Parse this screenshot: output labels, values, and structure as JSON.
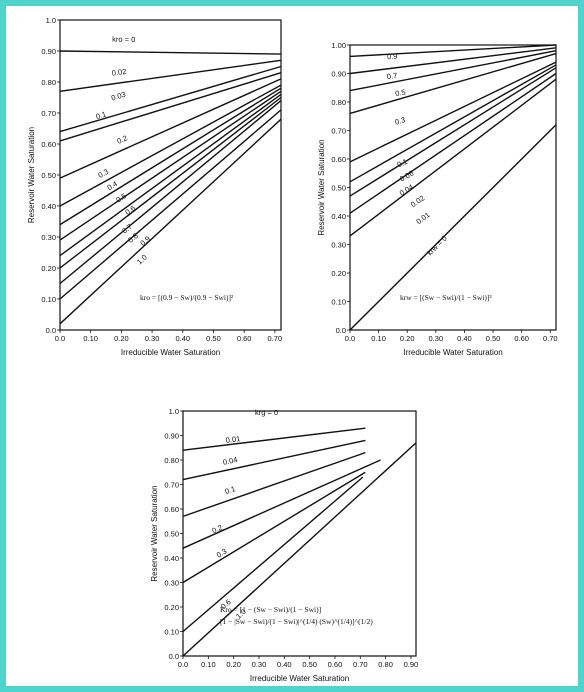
{
  "colors": {
    "frame": "#4fd3cd",
    "ink": "#111111",
    "background": "#ffffff"
  },
  "chart_data": [
    {
      "type": "line",
      "xlabel": "Irreducible Water Saturation",
      "ylabel": "Reservoir Water Saturation",
      "xlim": [
        0,
        0.72
      ],
      "ylim": [
        0,
        1.0
      ],
      "xticks": [
        "0.0",
        "0.10",
        "0.20",
        "0.30",
        "0.40",
        "0.50",
        "0.60",
        "0.70"
      ],
      "yticks": [
        "0.0",
        "0.10",
        "0.20",
        "0.30",
        "0.40",
        "0.50",
        "0.60",
        "0.70",
        "0.80",
        "0.90",
        "1.0"
      ],
      "formula": "kro = [(0.9 − Sw)/(0.9 − Swi)]²",
      "series": [
        {
          "name": "kro = 0",
          "points": [
            [
              0,
              0.9
            ],
            [
              0.72,
              0.89
            ]
          ],
          "label_at": [
            0.17,
            0.93
          ]
        },
        {
          "name": "0.02",
          "points": [
            [
              0,
              0.77
            ],
            [
              0.72,
              0.87
            ]
          ],
          "label_at": [
            0.17,
            0.82
          ]
        },
        {
          "name": "0.03",
          "points": [
            [
              0,
              0.64
            ],
            [
              0.72,
              0.85
            ]
          ],
          "label_at": [
            0.17,
            0.74
          ]
        },
        {
          "name": "0.1",
          "points": [
            [
              0,
              0.61
            ],
            [
              0.72,
              0.83
            ]
          ],
          "label_at": [
            0.12,
            0.68
          ]
        },
        {
          "name": "0.2",
          "points": [
            [
              0,
              0.49
            ],
            [
              0.72,
              0.81
            ]
          ],
          "label_at": [
            0.19,
            0.6
          ]
        },
        {
          "name": "0.3",
          "points": [
            [
              0,
              0.4
            ],
            [
              0.72,
              0.79
            ]
          ],
          "label_at": [
            0.13,
            0.49
          ]
        },
        {
          "name": "0.4",
          "points": [
            [
              0,
              0.34
            ],
            [
              0.72,
              0.78
            ]
          ],
          "label_at": [
            0.16,
            0.45
          ]
        },
        {
          "name": "0.5",
          "points": [
            [
              0,
              0.29
            ],
            [
              0.72,
              0.77
            ]
          ],
          "label_at": [
            0.19,
            0.41
          ]
        },
        {
          "name": "0.6",
          "points": [
            [
              0,
              0.24
            ],
            [
              0.72,
              0.76
            ]
          ],
          "label_at": [
            0.22,
            0.37
          ]
        },
        {
          "name": "0.7",
          "points": [
            [
              0,
              0.2
            ],
            [
              0.72,
              0.75
            ]
          ],
          "label_at": [
            0.21,
            0.31
          ]
        },
        {
          "name": "0.8",
          "points": [
            [
              0,
              0.15
            ],
            [
              0.72,
              0.74
            ]
          ],
          "label_at": [
            0.23,
            0.28
          ]
        },
        {
          "name": "0.9",
          "points": [
            [
              0,
              0.1
            ],
            [
              0.72,
              0.71
            ]
          ],
          "label_at": [
            0.27,
            0.27
          ]
        },
        {
          "name": "1.0",
          "points": [
            [
              0,
              0.02
            ],
            [
              0.72,
              0.68
            ]
          ],
          "label_at": [
            0.26,
            0.21
          ]
        }
      ]
    },
    {
      "type": "line",
      "xlabel": "Irreducible Water Saturation",
      "ylabel": "Reservoir Water Saturation",
      "xlim": [
        0,
        0.72
      ],
      "ylim": [
        0,
        1.0
      ],
      "xticks": [
        "0.0",
        "0.10",
        "0.20",
        "0.30",
        "0.40",
        "0.50",
        "0.60",
        "0.70"
      ],
      "yticks": [
        "0.0",
        "0.10",
        "0.20",
        "0.30",
        "0.40",
        "0.50",
        "0.60",
        "0.70",
        "0.80",
        "0.90",
        "1.00"
      ],
      "formula": "krw = [(Sw − Swi)/(1 − Swi)]³",
      "series": [
        {
          "name": "0.9",
          "points": [
            [
              0,
              0.96
            ],
            [
              0.72,
              1.0
            ]
          ],
          "label_at": [
            0.13,
            0.95
          ]
        },
        {
          "name": "0.7",
          "points": [
            [
              0,
              0.9
            ],
            [
              0.72,
              0.99
            ]
          ],
          "label_at": [
            0.13,
            0.88
          ]
        },
        {
          "name": "0.5",
          "points": [
            [
              0,
              0.84
            ],
            [
              0.72,
              0.98
            ]
          ],
          "label_at": [
            0.16,
            0.82
          ]
        },
        {
          "name": "0.3",
          "points": [
            [
              0,
              0.76
            ],
            [
              0.72,
              0.97
            ]
          ],
          "label_at": [
            0.16,
            0.72
          ]
        },
        {
          "name": "0.1",
          "points": [
            [
              0,
              0.59
            ],
            [
              0.72,
              0.94
            ]
          ],
          "label_at": [
            0.17,
            0.57
          ]
        },
        {
          "name": "0.06",
          "points": [
            [
              0,
              0.52
            ],
            [
              0.72,
              0.93
            ]
          ],
          "label_at": [
            0.18,
            0.52
          ]
        },
        {
          "name": "0.04",
          "points": [
            [
              0,
              0.47
            ],
            [
              0.72,
              0.92
            ]
          ],
          "label_at": [
            0.18,
            0.47
          ]
        },
        {
          "name": "0.02",
          "points": [
            [
              0,
              0.41
            ],
            [
              0.72,
              0.9
            ]
          ],
          "label_at": [
            0.22,
            0.43
          ]
        },
        {
          "name": "0.01",
          "points": [
            [
              0,
              0.33
            ],
            [
              0.72,
              0.88
            ]
          ],
          "label_at": [
            0.24,
            0.37
          ]
        },
        {
          "name": "krw = 0",
          "points": [
            [
              0,
              0.0
            ],
            [
              0.72,
              0.72
            ]
          ],
          "label_at": [
            0.28,
            0.26
          ]
        }
      ]
    },
    {
      "type": "line",
      "xlabel": "Irreducible Water Saturation",
      "ylabel": "Reservoir Water Saturation",
      "xlim": [
        0,
        0.92
      ],
      "ylim": [
        0,
        1.0
      ],
      "xticks": [
        "0.0",
        "0.10",
        "0.20",
        "0.30",
        "0.40",
        "0.50",
        "0.60",
        "0.70",
        "0.80",
        "0.90"
      ],
      "yticks": [
        "0.0",
        "0.10",
        "0.20",
        "0.30",
        "0.40",
        "0.50",
        "0.60",
        "0.70",
        "0.80",
        "0.90",
        "1.0"
      ],
      "top_label": "krg = 0",
      "formula": "Kro = [1 − (Sw − Swi)/(1 − Swi)]",
      "formula2": "[1 − |Sw − Swi)/(1 − Swi)|^(1/4) (Sw)^(1/4)]^(1/2)",
      "series": [
        {
          "name": "0.01",
          "points": [
            [
              0,
              0.84
            ],
            [
              0.72,
              0.93
            ]
          ],
          "label_at": [
            0.17,
            0.87
          ]
        },
        {
          "name": "0.04",
          "points": [
            [
              0,
              0.72
            ],
            [
              0.72,
              0.88
            ]
          ],
          "label_at": [
            0.16,
            0.78
          ]
        },
        {
          "name": "0.1",
          "points": [
            [
              0,
              0.57
            ],
            [
              0.72,
              0.83
            ]
          ],
          "label_at": [
            0.17,
            0.66
          ]
        },
        {
          "name": "0.2",
          "points": [
            [
              0,
              0.44
            ],
            [
              0.78,
              0.8
            ]
          ],
          "label_at": [
            0.12,
            0.5
          ]
        },
        {
          "name": "0.3",
          "points": [
            [
              0,
              0.3
            ],
            [
              0.72,
              0.75
            ]
          ],
          "label_at": [
            0.14,
            0.4
          ]
        },
        {
          "name": "0.6",
          "points": [
            [
              0,
              0.1
            ],
            [
              0.71,
              0.73
            ]
          ],
          "label_at": [
            0.16,
            0.19
          ]
        },
        {
          "name": "1.0",
          "points": [
            [
              0,
              0.0
            ],
            [
              0.92,
              0.87
            ]
          ],
          "label_at": [
            0.22,
            0.15
          ]
        }
      ]
    }
  ]
}
